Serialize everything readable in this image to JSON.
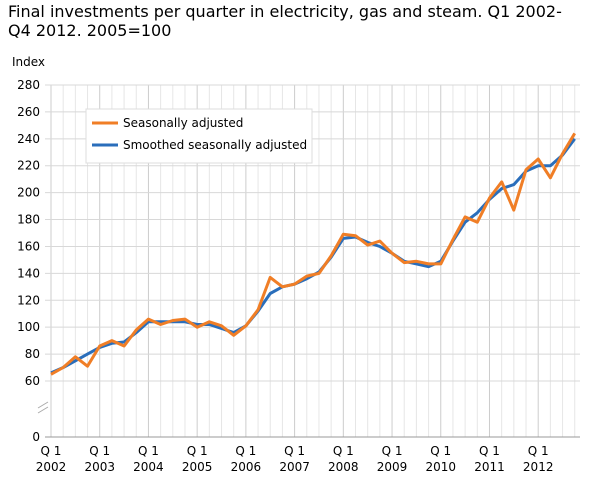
{
  "chart_data": {
    "type": "line",
    "title": "Final investments per quarter in electricity, gas and steam. Q1 2002-Q4 2012. 2005=100",
    "ylabel": "Index",
    "xlabel": "",
    "ylim": [
      0,
      280
    ],
    "yticks": [
      0,
      60,
      80,
      100,
      120,
      140,
      160,
      180,
      200,
      220,
      240,
      260,
      280
    ],
    "axis_break": true,
    "grid": true,
    "legend_placement": "top-left",
    "x_tick_labels": [
      {
        "q": "Q 1",
        "year": "2002"
      },
      {
        "q": "Q 1",
        "year": "2003"
      },
      {
        "q": "Q 1",
        "year": "2004"
      },
      {
        "q": "Q 1",
        "year": "2005"
      },
      {
        "q": "Q 1",
        "year": "2006"
      },
      {
        "q": "Q 1",
        "year": "2007"
      },
      {
        "q": "Q 1",
        "year": "2008"
      },
      {
        "q": "Q 1",
        "year": "2009"
      },
      {
        "q": "Q 1",
        "year": "2010"
      },
      {
        "q": "Q 1",
        "year": "2011"
      },
      {
        "q": "Q 1",
        "year": "2012"
      }
    ],
    "x_start": "2002Q1",
    "x_end": "2012Q4",
    "series": [
      {
        "name": "Seasonally adjusted",
        "color": "#f07e26",
        "values": [
          65,
          70,
          78,
          71,
          86,
          90,
          86,
          98,
          106,
          102,
          105,
          106,
          100,
          104,
          101,
          94,
          101,
          113,
          137,
          130,
          132,
          138,
          140,
          153,
          169,
          168,
          161,
          164,
          155,
          148,
          149,
          147,
          147,
          165,
          182,
          178,
          196,
          208,
          187,
          217,
          225,
          211,
          229,
          244
        ]
      },
      {
        "name": "Smoothed seasonally adjusted",
        "color": "#2a6ebb",
        "values": [
          66,
          70,
          75,
          80,
          85,
          88,
          89,
          96,
          104,
          104,
          104,
          104,
          102,
          102,
          99,
          96,
          101,
          112,
          125,
          130,
          132,
          136,
          141,
          152,
          166,
          167,
          163,
          160,
          155,
          149,
          147,
          145,
          149,
          164,
          178,
          185,
          195,
          203,
          206,
          216,
          220,
          220,
          228,
          240
        ]
      }
    ]
  }
}
